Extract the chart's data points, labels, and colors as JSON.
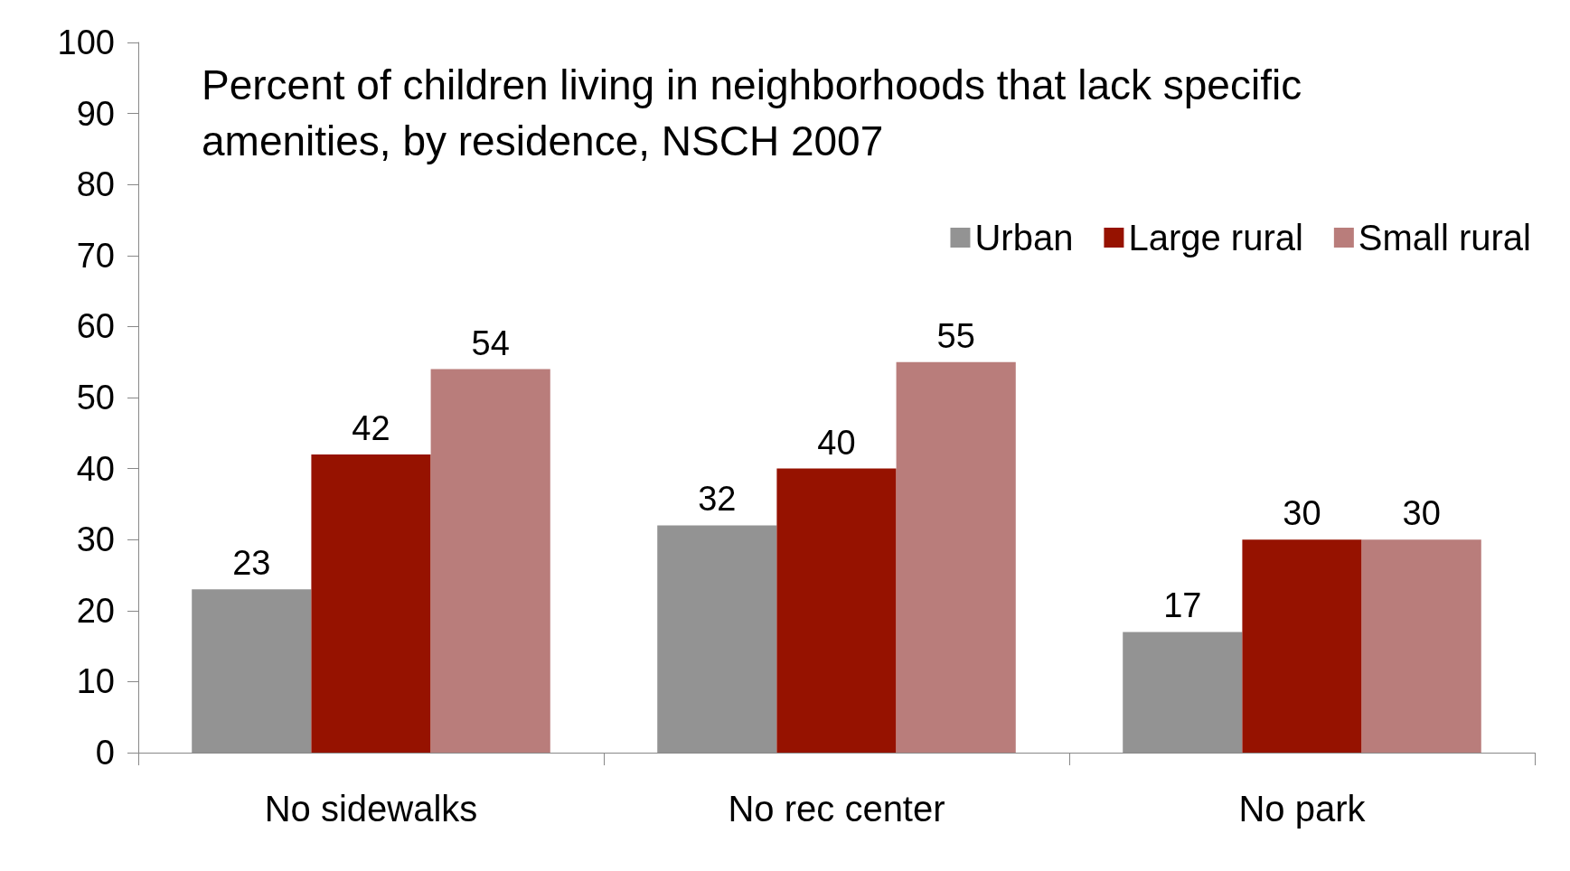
{
  "chart_data": {
    "type": "bar",
    "title": "Percent of children living in neighborhoods that lack specific\namenities, by residence, NSCH 2007",
    "categories": [
      "No sidewalks",
      "No rec center",
      "No park"
    ],
    "series": [
      {
        "name": "Urban",
        "color": "#939393",
        "values": [
          23,
          32,
          17
        ]
      },
      {
        "name": "Large rural",
        "color": "#961200",
        "values": [
          42,
          40,
          30
        ]
      },
      {
        "name": "Small rural",
        "color": "#b97d7b",
        "values": [
          54,
          55,
          30
        ]
      }
    ],
    "ylim": [
      0,
      100
    ],
    "yticks": [
      0,
      10,
      20,
      30,
      40,
      50,
      60,
      70,
      80,
      90,
      100
    ],
    "grid": false,
    "legend": "top right",
    "data_labels": true
  }
}
